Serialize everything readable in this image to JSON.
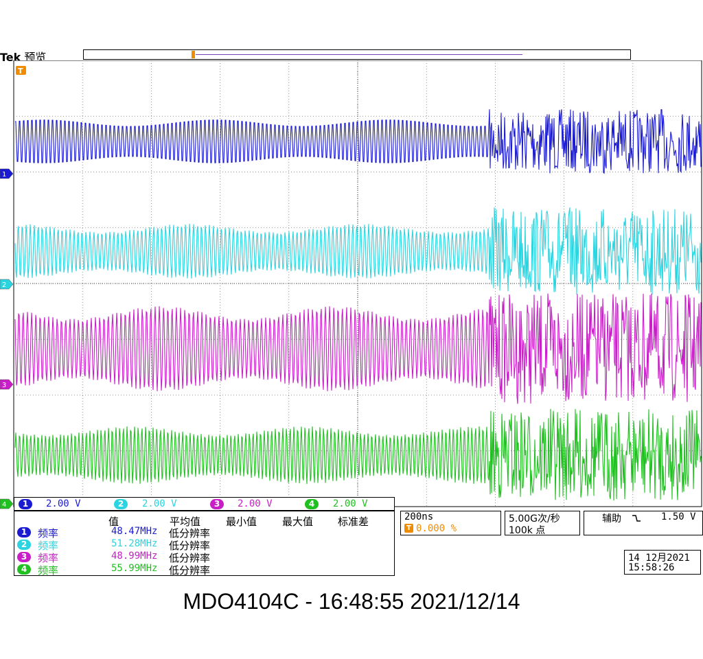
{
  "header": {
    "brand": "Tek",
    "mode": "预览"
  },
  "trigger_marker": "T",
  "channels": [
    {
      "id": "1",
      "color": "#1a1ad2",
      "scale": "2.00 V"
    },
    {
      "id": "2",
      "color": "#2ad4e0",
      "scale": "2.00 V"
    },
    {
      "id": "3",
      "color": "#c81ec8",
      "scale": "2.00 V"
    },
    {
      "id": "4",
      "color": "#20c020",
      "scale": "2.00 V"
    }
  ],
  "measurements": {
    "headers": [
      "值",
      "平均值",
      "最小值",
      "最大值",
      "标准差"
    ],
    "rows": [
      {
        "ch": "1",
        "name": "频率",
        "value": "48.47MHz",
        "avg": "低分辨率"
      },
      {
        "ch": "2",
        "name": "频率",
        "value": "51.28MHz",
        "avg": "低分辨率"
      },
      {
        "ch": "3",
        "name": "频率",
        "value": "48.99MHz",
        "avg": "低分辨率"
      },
      {
        "ch": "4",
        "name": "频率",
        "value": "55.99MHz",
        "avg": "低分辨率"
      }
    ]
  },
  "timebase": {
    "scale": "200ns",
    "trigger_icon": "T",
    "position": "0.000 %"
  },
  "acquisition": {
    "rate": "5.00G次/秒",
    "points": "100k 点"
  },
  "trigger": {
    "source": "辅助",
    "slope_icon": "falling-edge-icon",
    "level": "1.50 V"
  },
  "datetime": {
    "date": "14 12月2021",
    "time": "15:58:26"
  },
  "footer": "MDO4104C - 16:48:55   2021/12/14"
}
